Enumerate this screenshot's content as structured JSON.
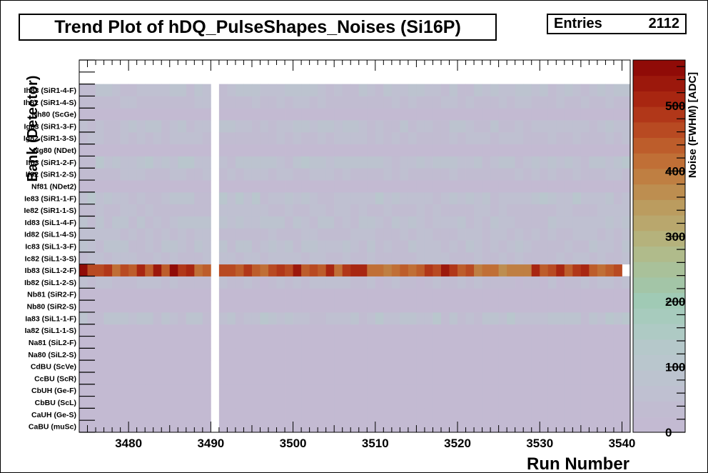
{
  "chart_data": {
    "type": "heatmap",
    "title": "Trend Plot of hDQ_PulseShapes_Noises (Si16P)",
    "stats": {
      "label": "Entries",
      "value": "2112"
    },
    "xlabel": "Run Number",
    "ylabel": "Bank (Detector)",
    "zlabel": "Noise (FWHM) [ADC]",
    "xlim": [
      3474,
      3541
    ],
    "x_ticks": [
      3480,
      3490,
      3500,
      3510,
      3520,
      3530,
      3540
    ],
    "z_ticks": [
      0,
      100,
      200,
      300,
      400,
      500
    ],
    "zlim": [
      0,
      570
    ],
    "gap_runs": [
      3490
    ],
    "data_run_range": [
      3474,
      3540
    ],
    "rows": [
      {
        "label": "CaBU (muSc)",
        "base": 10
      },
      {
        "label": "CaUH (Ge-S)",
        "base": 10
      },
      {
        "label": "CbBU (ScL)",
        "base": 10
      },
      {
        "label": "CbUH (Ge-F)",
        "base": 10
      },
      {
        "label": "CcBU (ScR)",
        "base": 10
      },
      {
        "label": "CdBU (ScVe)",
        "base": 10
      },
      {
        "label": "Na80 (SiL2-S)",
        "base": 10
      },
      {
        "label": "Na81 (SiL2-F)",
        "base": 10
      },
      {
        "label": "Ia82 (SiL1-1-S)",
        "base": 15
      },
      {
        "label": "Ia83 (SiL1-1-F)",
        "base": 70
      },
      {
        "label": "Nb80 (SiR2-S)",
        "base": 10
      },
      {
        "label": "Nb81 (SiR2-F)",
        "base": 10
      },
      {
        "label": "Ib82 (SiL1-2-S)",
        "base": 40
      },
      {
        "label": "Ib83 (SiL1-2-F)",
        "base": 450
      },
      {
        "label": "Ic82 (SiL1-3-S)",
        "base": 45
      },
      {
        "label": "Ic83 (SiL1-3-F)",
        "base": 60
      },
      {
        "label": "Id82 (SiL1-4-S)",
        "base": 45
      },
      {
        "label": "Id83 (SiL1-4-F)",
        "base": 65
      },
      {
        "label": "Ie82 (SiR1-1-S)",
        "base": 45
      },
      {
        "label": "Ie83 (SiR1-1-F)",
        "base": 70
      },
      {
        "label": "Nf81 (NDet2)",
        "base": 10
      },
      {
        "label": "If82 (SiR1-2-S)",
        "base": 45
      },
      {
        "label": "If83 (SiR1-2-F)",
        "base": 70
      },
      {
        "label": "Ng80 (NDet)",
        "base": 10
      },
      {
        "label": "Ig82 (SiR1-3-S)",
        "base": 45
      },
      {
        "label": "Ig83 (SiR1-3-F)",
        "base": 60
      },
      {
        "label": "Nh80 (ScGe)",
        "base": 10
      },
      {
        "label": "Ih82 (SiR1-4-S)",
        "base": 45
      },
      {
        "label": "Ih83 (SiR1-4-F)",
        "base": 65
      }
    ],
    "highlight_row_values": {
      "label": "Ib83 (SiL1-2-F)",
      "values": [
        560,
        470,
        460,
        480,
        420,
        470,
        440,
        500,
        440,
        530,
        430,
        560,
        480,
        520,
        410,
        430,
        450,
        460,
        470,
        440,
        480,
        450,
        420,
        460,
        490,
        470,
        530,
        430,
        470,
        450,
        510,
        420,
        480,
        500,
        520,
        420,
        410,
        380,
        420,
        430,
        410,
        450,
        480,
        470,
        530,
        480,
        440,
        460,
        400,
        410,
        420,
        370,
        380,
        400,
        390,
        510,
        450,
        470,
        500,
        430,
        480,
        500,
        430,
        410,
        440,
        470
      ]
    },
    "palette": [
      "#c3bad2",
      "#c1bcd1",
      "#bfc0d1",
      "#bcc3cf",
      "#b9c6cd",
      "#b5c8ca",
      "#aecac4",
      "#a7cbbd",
      "#a0cab5",
      "#a3c5a7",
      "#a9c19a",
      "#b0bb8b",
      "#b5b27c",
      "#b9a76d",
      "#bb9c5f",
      "#bd8e50",
      "#bf7f42",
      "#c06f36",
      "#bd5d2b",
      "#b84a22",
      "#b13719",
      "#a82611",
      "#9c180c",
      "#900b07"
    ]
  }
}
